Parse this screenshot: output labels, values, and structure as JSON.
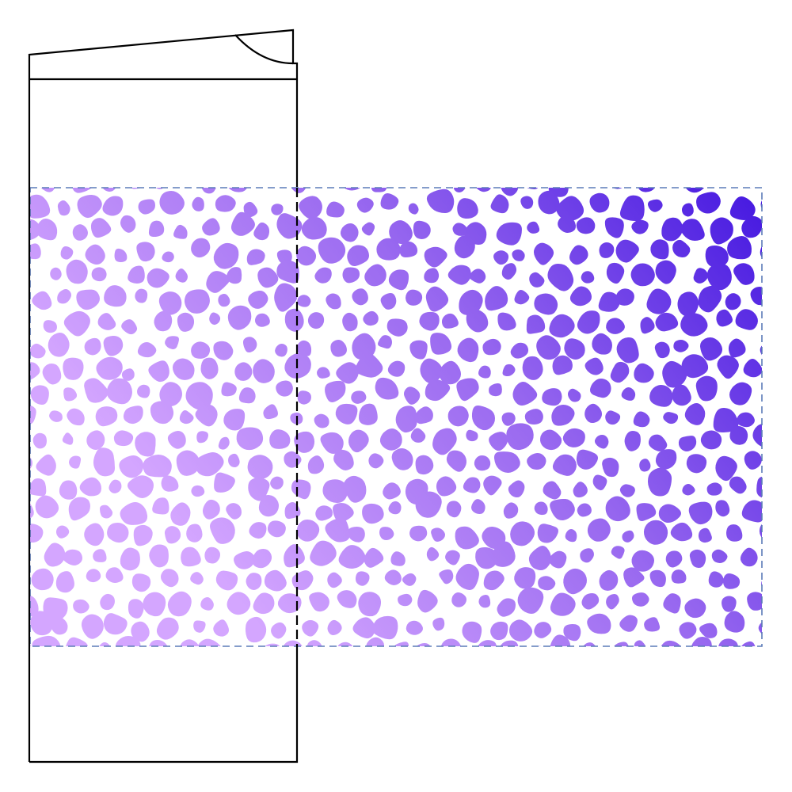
{
  "colors": {
    "background": "#ffffff",
    "dieline": "#000000",
    "pattern_border": "#5b7bb8",
    "gradient_light": "#d4a6ff",
    "gradient_mid": "#9a6af0",
    "gradient_dark": "#4518e0",
    "cell_gap": "#ffffff"
  },
  "pattern": {
    "style": "cellular-blobs",
    "gradient_direction": "bottom-left-light-to-top-right-dark"
  },
  "icons": {
    "flap_notch": "curved-notch"
  }
}
